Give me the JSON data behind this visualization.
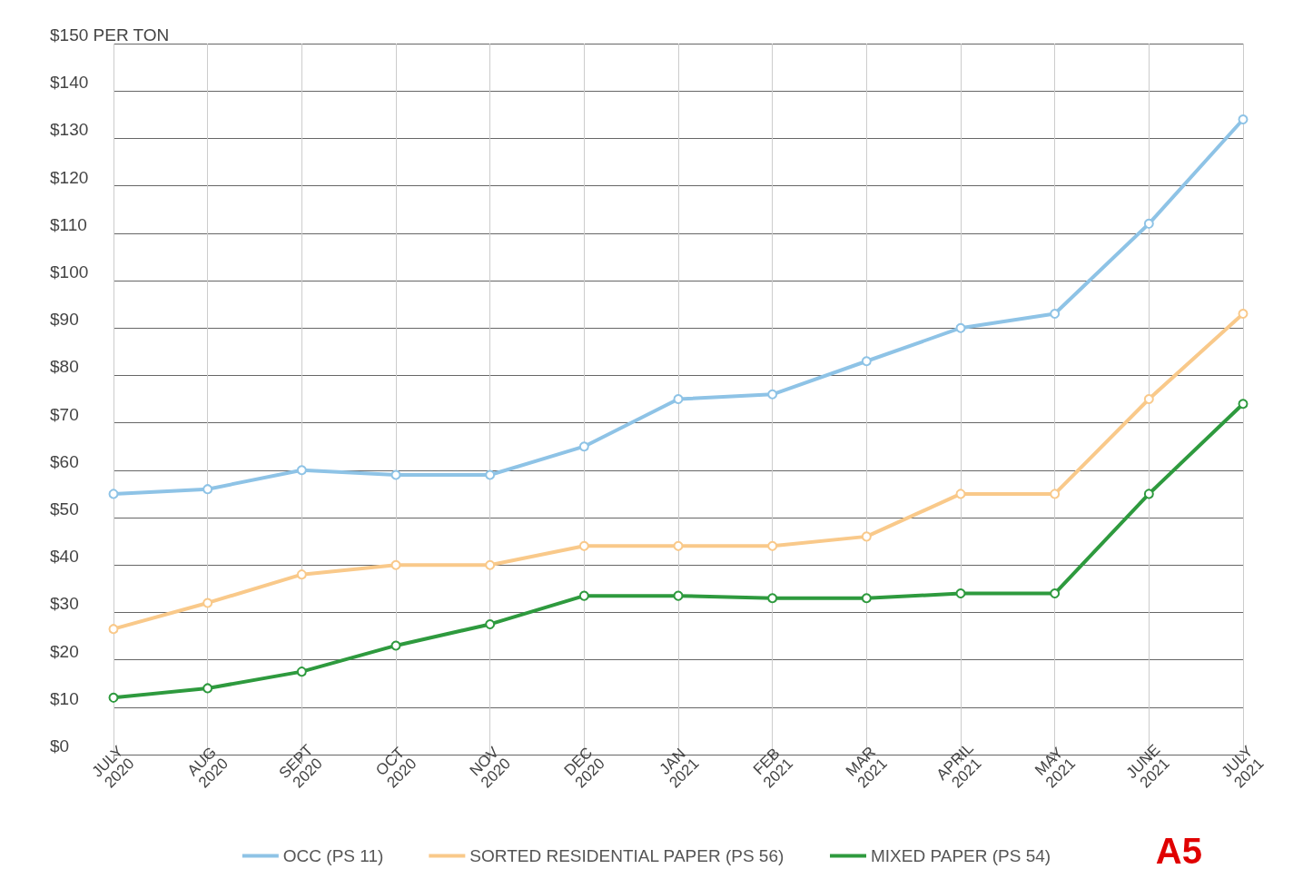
{
  "chart_data": {
    "type": "line",
    "categories": [
      "JULY 2020",
      "AUG 2020",
      "SEPT 2020",
      "OCT 2020",
      "NOV 2020",
      "DEC 2020",
      "JAN 2021",
      "FEB 2021",
      "MAR 2021",
      "APRIL 2021",
      "MAY 2021",
      "JUNE 2021",
      "JULY 2021"
    ],
    "series": [
      {
        "name": "OCC (PS 11)",
        "color": "#8ec3e6",
        "values": [
          55,
          56,
          60,
          59,
          59,
          65,
          75,
          76,
          83,
          90,
          93,
          112,
          134
        ]
      },
      {
        "name": "SORTED RESIDENTIAL PAPER (PS 56)",
        "color": "#f9c98a",
        "values": [
          26.5,
          32,
          38,
          40,
          40,
          44,
          44,
          44,
          46,
          55,
          55,
          75,
          93
        ]
      },
      {
        "name": "MIXED PAPER (PS 54)",
        "color": "#2e9a3e",
        "values": [
          12,
          14,
          17.5,
          23,
          27.5,
          33.5,
          33.5,
          33,
          33,
          34,
          34,
          55,
          74
        ]
      }
    ],
    "ylim": [
      0,
      150
    ],
    "yticks": [
      {
        "value": 0,
        "label": "$0"
      },
      {
        "value": 10,
        "label": "$10"
      },
      {
        "value": 20,
        "label": "$20"
      },
      {
        "value": 30,
        "label": "$30"
      },
      {
        "value": 40,
        "label": "$40"
      },
      {
        "value": 50,
        "label": "$50"
      },
      {
        "value": 60,
        "label": "$60"
      },
      {
        "value": 70,
        "label": "$70"
      },
      {
        "value": 80,
        "label": "$80"
      },
      {
        "value": 90,
        "label": "$90"
      },
      {
        "value": 100,
        "label": "$100"
      },
      {
        "value": 110,
        "label": "$110"
      },
      {
        "value": 120,
        "label": "$120"
      },
      {
        "value": 130,
        "label": "$130"
      },
      {
        "value": 140,
        "label": "$140"
      },
      {
        "value": 150,
        "label": "$150 PER TON"
      }
    ],
    "grid": true,
    "legend": "bottom",
    "marker": "circle",
    "line_style": "solid",
    "annotations": [
      "A5"
    ]
  }
}
